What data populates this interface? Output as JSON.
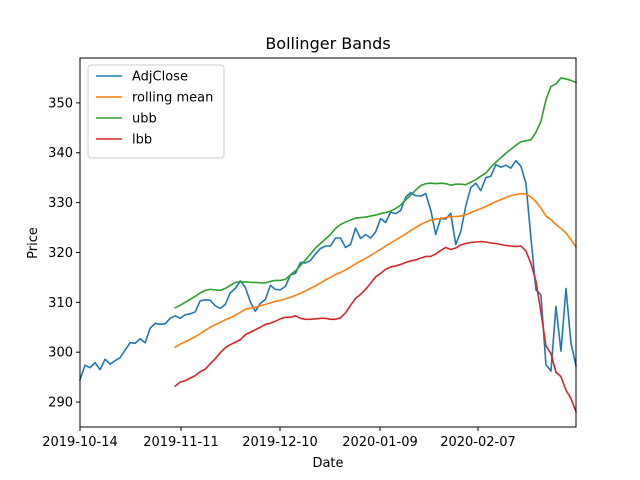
{
  "chart_data": {
    "type": "line",
    "title": "Bollinger Bands",
    "xlabel": "Date",
    "ylabel": "Price",
    "x_ticks": [
      "2019-10-14",
      "2019-11-11",
      "2019-12-10",
      "2020-01-09",
      "2020-02-07"
    ],
    "y_ticks": [
      290,
      300,
      310,
      320,
      330,
      340,
      350
    ],
    "ylim": [
      285,
      359
    ],
    "grid": false,
    "legend_position": "top-left",
    "series": [
      {
        "name": "AdjClose",
        "color": "#1f77b4",
        "values": [
          294.5,
          297.4,
          296.9,
          297.9,
          296.5,
          298.6,
          297.6,
          298.3,
          298.9,
          300.4,
          301.9,
          301.8,
          302.7,
          301.9,
          304.8,
          305.8,
          305.6,
          305.7,
          306.8,
          307.3,
          306.8,
          307.5,
          307.7,
          308.1,
          310.3,
          310.5,
          310.4,
          309.3,
          308.8,
          309.6,
          311.9,
          312.8,
          314.3,
          313.0,
          310.1,
          308.2,
          309.8,
          310.6,
          313.4,
          312.6,
          312.5,
          313.2,
          315.5,
          315.8,
          318.0,
          317.9,
          318.4,
          319.7,
          320.8,
          321.3,
          321.3,
          322.9,
          322.9,
          321.0,
          321.6,
          324.9,
          322.8,
          323.6,
          322.9,
          324.1,
          326.8,
          326.0,
          328.1,
          327.8,
          328.4,
          331.1,
          332.0,
          331.4,
          331.3,
          331.8,
          328.5,
          323.6,
          326.9,
          326.7,
          327.9,
          321.6,
          324.2,
          329.3,
          333.0,
          333.9,
          332.4,
          335.0,
          335.3,
          337.6,
          337.1,
          337.5,
          336.9,
          338.4,
          337.3,
          333.9,
          323.0,
          312.5,
          311.5,
          297.5,
          296.2,
          309.2,
          300.2,
          312.8,
          301.8,
          297.3
        ]
      },
      {
        "name": "rolling mean",
        "color": "#ff7f0e",
        "values": [
          null,
          null,
          null,
          null,
          null,
          null,
          null,
          null,
          null,
          null,
          null,
          null,
          null,
          null,
          null,
          null,
          null,
          null,
          null,
          301.0,
          301.6,
          302.1,
          302.6,
          303.1,
          303.7,
          304.4,
          305.0,
          305.5,
          306.0,
          306.5,
          306.9,
          307.4,
          308.0,
          308.6,
          308.8,
          309.0,
          309.3,
          309.6,
          309.9,
          310.2,
          310.4,
          310.7,
          311.0,
          311.4,
          311.8,
          312.3,
          312.8,
          313.3,
          313.9,
          314.5,
          315.0,
          315.6,
          316.0,
          316.5,
          317.1,
          317.7,
          318.3,
          318.8,
          319.4,
          320.0,
          320.6,
          321.3,
          321.9,
          322.5,
          323.1,
          323.7,
          324.4,
          325.0,
          325.6,
          326.1,
          326.5,
          326.7,
          326.8,
          327.0,
          327.2,
          327.2,
          327.3,
          327.6,
          328.0,
          328.4,
          328.8,
          329.2,
          329.7,
          330.2,
          330.6,
          331.0,
          331.4,
          331.6,
          331.8,
          331.7,
          331.1,
          330.2,
          328.9,
          327.3,
          326.6,
          325.6,
          324.8,
          323.9,
          322.6,
          321.1
        ]
      },
      {
        "name": "ubb",
        "color": "#2ca02c",
        "values": [
          null,
          null,
          null,
          null,
          null,
          null,
          null,
          null,
          null,
          null,
          null,
          null,
          null,
          null,
          null,
          null,
          null,
          null,
          null,
          308.9,
          309.4,
          310.0,
          310.6,
          311.2,
          311.9,
          312.4,
          312.6,
          312.5,
          312.4,
          312.8,
          313.4,
          314.0,
          314.1,
          314.1,
          314.0,
          314.0,
          313.9,
          313.9,
          314.2,
          314.4,
          314.4,
          314.6,
          315.5,
          316.3,
          317.4,
          318.5,
          319.7,
          320.9,
          321.8,
          322.7,
          323.6,
          324.8,
          325.6,
          326.1,
          326.5,
          326.9,
          327.0,
          327.1,
          327.3,
          327.5,
          327.8,
          328.0,
          328.3,
          328.8,
          329.5,
          330.5,
          331.5,
          332.5,
          333.4,
          333.8,
          333.9,
          333.8,
          333.9,
          333.8,
          333.5,
          333.7,
          333.7,
          333.6,
          334.1,
          334.6,
          335.3,
          335.9,
          337.1,
          338.1,
          339.0,
          339.9,
          340.7,
          341.5,
          342.2,
          342.4,
          342.6,
          344.1,
          346.3,
          350.6,
          353.3,
          353.8,
          355.0,
          354.8,
          354.5,
          354.1
        ]
      },
      {
        "name": "lbb",
        "color": "#d62728",
        "values": [
          null,
          null,
          null,
          null,
          null,
          null,
          null,
          null,
          null,
          null,
          null,
          null,
          null,
          null,
          null,
          null,
          null,
          null,
          null,
          293.2,
          294.0,
          294.3,
          294.8,
          295.3,
          296.1,
          296.6,
          297.7,
          298.7,
          299.9,
          300.9,
          301.5,
          302.0,
          302.5,
          303.5,
          304.0,
          304.5,
          305.0,
          305.6,
          305.8,
          306.2,
          306.7,
          307.0,
          307.0,
          307.3,
          306.8,
          306.6,
          306.6,
          306.7,
          306.8,
          306.8,
          306.6,
          306.6,
          306.9,
          307.9,
          309.4,
          310.8,
          311.6,
          312.6,
          313.8,
          315.1,
          315.8,
          316.6,
          317.1,
          317.3,
          317.6,
          318.0,
          318.3,
          318.5,
          318.9,
          319.2,
          319.2,
          319.7,
          320.4,
          321.0,
          320.6,
          320.9,
          321.5,
          321.8,
          322.0,
          322.1,
          322.2,
          322.1,
          321.9,
          321.8,
          321.6,
          321.4,
          321.3,
          321.2,
          321.3,
          320.3,
          317.8,
          314.3,
          308.0,
          301.3,
          299.7,
          296.0,
          295.1,
          292.4,
          290.7,
          288.1
        ]
      }
    ]
  }
}
